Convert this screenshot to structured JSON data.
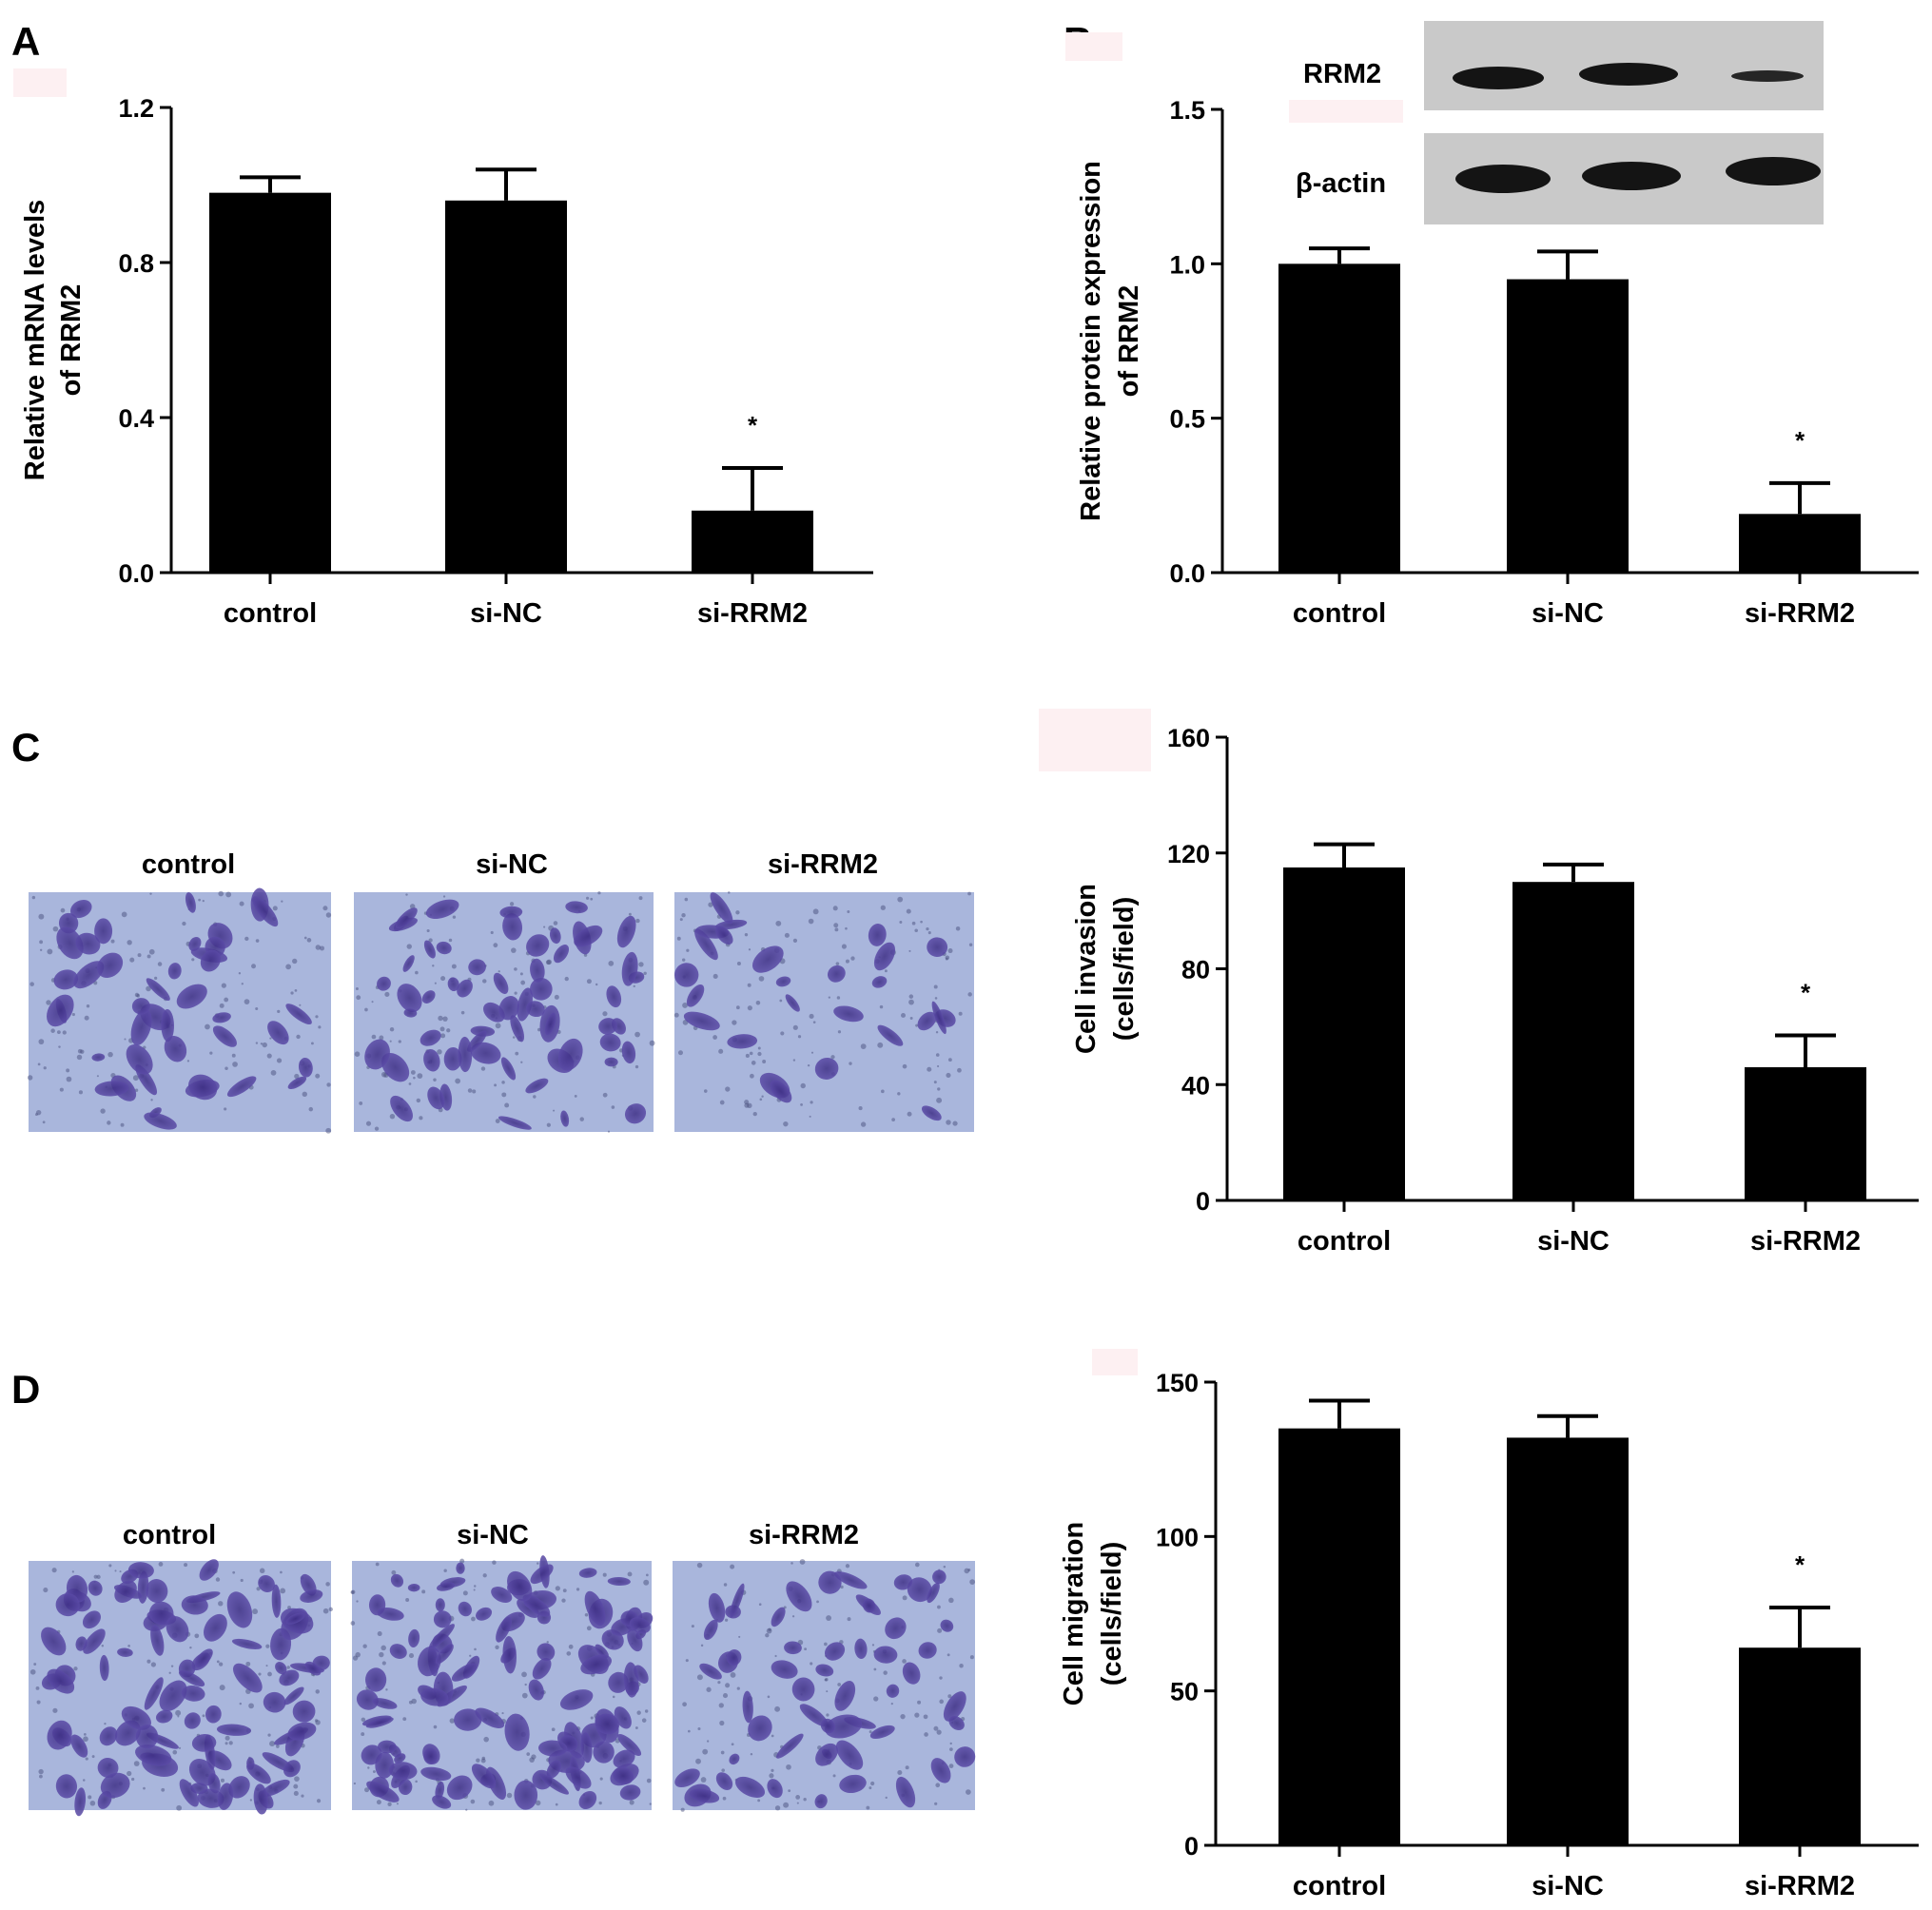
{
  "panels": [
    {
      "id": "A",
      "label": "A"
    },
    {
      "id": "B",
      "label": "B"
    },
    {
      "id": "C",
      "label": "C"
    },
    {
      "id": "D",
      "label": "D"
    }
  ],
  "blot": {
    "labels": [
      "RRM2",
      "β-actin"
    ]
  },
  "micrographs": {
    "C": [
      "control",
      "si-NC",
      "si-RRM2"
    ],
    "D": [
      "control",
      "si-NC",
      "si-RRM2"
    ]
  },
  "chart_data": [
    {
      "panel": "A",
      "type": "bar",
      "categories": [
        "control",
        "si-NC",
        "si-RRM2"
      ],
      "values": [
        0.98,
        0.96,
        0.16
      ],
      "errors": [
        0.04,
        0.08,
        0.11
      ],
      "significance": [
        "",
        "",
        "*"
      ],
      "ylabel_lines": [
        "Relative  mRNA levels",
        "of RRM2"
      ],
      "ylim": [
        0,
        1.2
      ],
      "yticks": [
        "0.0",
        "0.4",
        "0.8",
        "1.2"
      ],
      "bar_color": "#000000"
    },
    {
      "panel": "B",
      "type": "bar",
      "categories": [
        "control",
        "si-NC",
        "si-RRM2"
      ],
      "values": [
        1.0,
        0.95,
        0.19
      ],
      "errors": [
        0.05,
        0.09,
        0.1
      ],
      "significance": [
        "",
        "",
        "*"
      ],
      "ylabel_lines": [
        "Relative  protein expression",
        "of RRM2"
      ],
      "ylim": [
        0,
        1.5
      ],
      "yticks": [
        "0.0",
        "0.5",
        "1.0",
        "1.5"
      ],
      "bar_color": "#000000"
    },
    {
      "panel": "C",
      "type": "bar",
      "categories": [
        "control",
        "si-NC",
        "si-RRM2"
      ],
      "values": [
        115,
        110,
        46
      ],
      "errors": [
        8,
        6,
        11
      ],
      "significance": [
        "",
        "",
        "*"
      ],
      "ylabel_lines": [
        "Cell invasion",
        "(cells/field)"
      ],
      "ylim": [
        0,
        160
      ],
      "yticks": [
        "0",
        "40",
        "80",
        "120",
        "160"
      ],
      "bar_color": "#000000"
    },
    {
      "panel": "D",
      "type": "bar",
      "categories": [
        "control",
        "si-NC",
        "si-RRM2"
      ],
      "values": [
        135,
        132,
        64
      ],
      "errors": [
        9,
        7,
        13
      ],
      "significance": [
        "",
        "",
        "*"
      ],
      "ylabel_lines": [
        "Cell migration",
        "(cells/field)"
      ],
      "ylim": [
        0,
        150
      ],
      "yticks": [
        "0",
        "50",
        "100",
        "150"
      ],
      "bar_color": "#000000"
    }
  ]
}
